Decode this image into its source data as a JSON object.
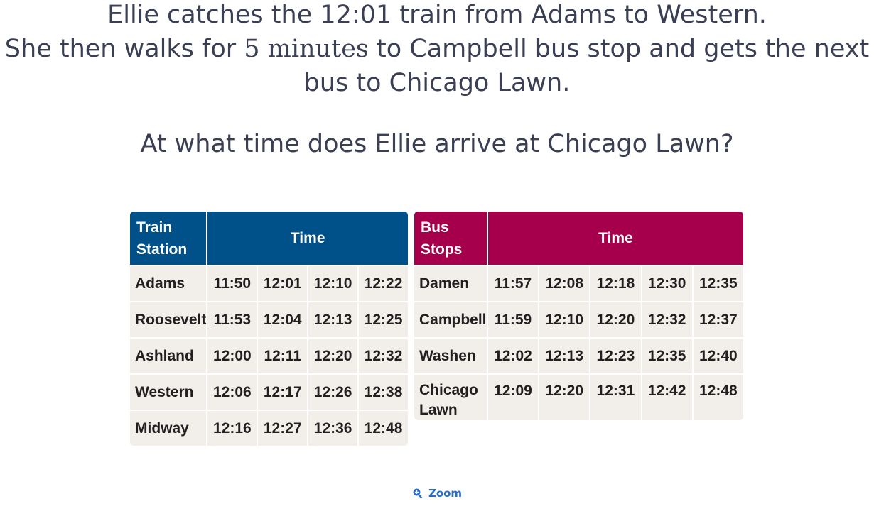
{
  "question": {
    "line1": "Ellie catches the 12:01 train from Adams to Western.",
    "line2_pre": "She then walks for ",
    "line2_math": "5 minutes",
    "line2_post": " to Campbell bus stop and gets the next",
    "line3": "bus to Chicago Lawn.",
    "ask": "At what time does Ellie arrive at Chicago Lawn?"
  },
  "train_table": {
    "header_name_line1": "Train",
    "header_name_line2": "Station",
    "header_time": "Time",
    "header_color": "#00508a",
    "rows": [
      {
        "station": "Adams",
        "times": [
          "11:50",
          "12:01",
          "12:10",
          "12:22"
        ]
      },
      {
        "station": "Roosevelt",
        "times": [
          "11:53",
          "12:04",
          "12:13",
          "12:25"
        ]
      },
      {
        "station": "Ashland",
        "times": [
          "12:00",
          "12:11",
          "12:20",
          "12:32"
        ]
      },
      {
        "station": "Western",
        "times": [
          "12:06",
          "12:17",
          "12:26",
          "12:38"
        ]
      },
      {
        "station": "Midway",
        "times": [
          "12:16",
          "12:27",
          "12:36",
          "12:48"
        ]
      }
    ]
  },
  "bus_table": {
    "header_name_line1": "Bus",
    "header_name_line2": "Stops",
    "header_time": "Time",
    "header_color": "#a6004d",
    "rows": [
      {
        "stop_line1": "Damen",
        "stop_line2": "",
        "times": [
          "11:57",
          "12:08",
          "12:18",
          "12:30",
          "12:35"
        ]
      },
      {
        "stop_line1": "Campbell",
        "stop_line2": "",
        "times": [
          "11:59",
          "12:10",
          "12:20",
          "12:32",
          "12:37"
        ]
      },
      {
        "stop_line1": "Washen",
        "stop_line2": "",
        "times": [
          "12:02",
          "12:13",
          "12:23",
          "12:35",
          "12:40"
        ]
      },
      {
        "stop_line1": "Chicago",
        "stop_line2": "Lawn",
        "times": [
          "12:09",
          "12:20",
          "12:31",
          "12:42",
          "12:48"
        ]
      }
    ]
  },
  "zoom": {
    "icon": "zoom-in-icon",
    "label": "Zoom"
  }
}
